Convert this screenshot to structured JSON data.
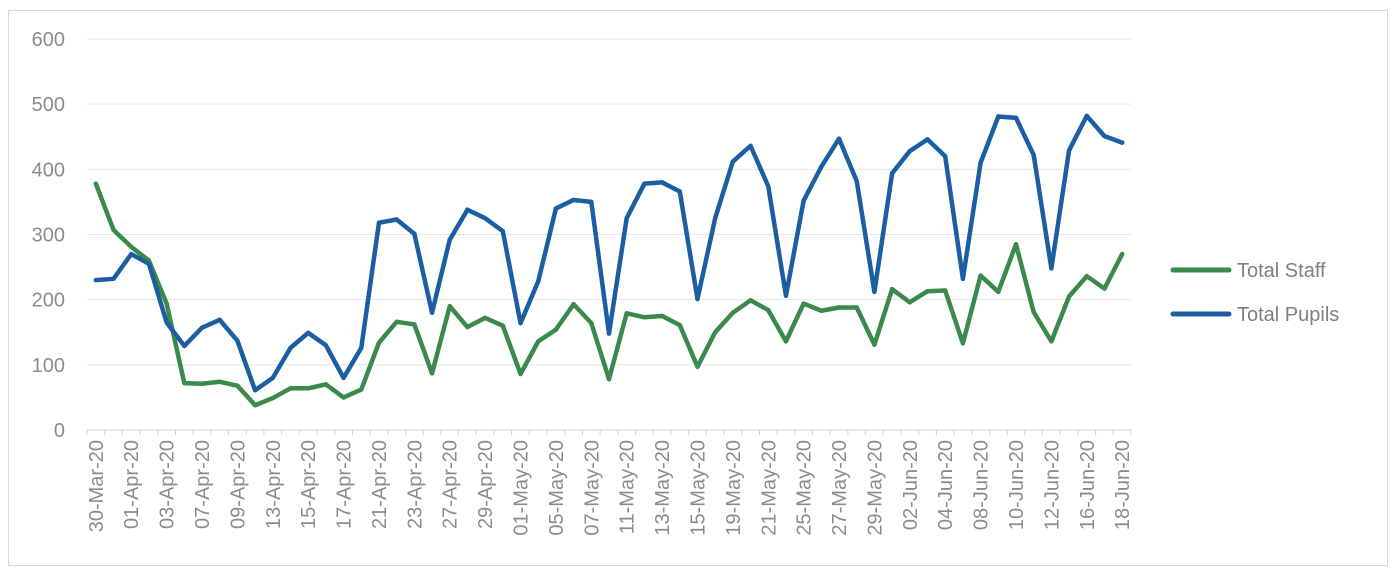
{
  "chart_data": {
    "type": "line",
    "title": "",
    "xlabel": "",
    "ylabel": "",
    "ylim": [
      0,
      600
    ],
    "y_ticks": [
      0,
      100,
      200,
      300,
      400,
      500,
      600
    ],
    "grid": "horizontal",
    "legend_position": "right",
    "x": [
      "30-Mar-20",
      "31-Mar-20",
      "01-Apr-20",
      "02-Apr-20",
      "03-Apr-20",
      "06-Apr-20",
      "07-Apr-20",
      "08-Apr-20",
      "09-Apr-20",
      "10-Apr-20",
      "13-Apr-20",
      "14-Apr-20",
      "15-Apr-20",
      "16-Apr-20",
      "17-Apr-20",
      "20-Apr-20",
      "21-Apr-20",
      "22-Apr-20",
      "23-Apr-20",
      "24-Apr-20",
      "27-Apr-20",
      "28-Apr-20",
      "29-Apr-20",
      "30-Apr-20",
      "01-May-20",
      "04-May-20",
      "05-May-20",
      "06-May-20",
      "07-May-20",
      "08-May-20",
      "11-May-20",
      "12-May-20",
      "13-May-20",
      "14-May-20",
      "15-May-20",
      "18-May-20",
      "19-May-20",
      "20-May-20",
      "21-May-20",
      "22-May-20",
      "25-May-20",
      "26-May-20",
      "27-May-20",
      "28-May-20",
      "29-May-20",
      "01-Jun-20",
      "02-Jun-20",
      "03-Jun-20",
      "04-Jun-20",
      "05-Jun-20",
      "08-Jun-20",
      "09-Jun-20",
      "10-Jun-20",
      "11-Jun-20",
      "12-Jun-20",
      "15-Jun-20",
      "16-Jun-20",
      "17-Jun-20",
      "18-Jun-20"
    ],
    "x_tick_labels": [
      "30-Mar-20",
      "01-Apr-20",
      "03-Apr-20",
      "07-Apr-20",
      "09-Apr-20",
      "13-Apr-20",
      "15-Apr-20",
      "17-Apr-20",
      "21-Apr-20",
      "23-Apr-20",
      "27-Apr-20",
      "29-Apr-20",
      "01-May-20",
      "05-May-20",
      "07-May-20",
      "11-May-20",
      "13-May-20",
      "15-May-20",
      "19-May-20",
      "21-May-20",
      "25-May-20",
      "27-May-20",
      "29-May-20",
      "02-Jun-20",
      "04-Jun-20",
      "08-Jun-20",
      "10-Jun-20",
      "12-Jun-20",
      "16-Jun-20",
      "18-Jun-20"
    ],
    "series": [
      {
        "name": "Total Staff",
        "color": "#3a8a4b",
        "values": [
          378,
          307,
          281,
          260,
          194,
          72,
          71,
          74,
          68,
          38,
          49,
          64,
          64,
          70,
          50,
          62,
          134,
          166,
          162,
          87,
          190,
          158,
          172,
          160,
          86,
          136,
          154,
          193,
          164,
          78,
          179,
          173,
          175,
          161,
          97,
          150,
          180,
          199,
          184,
          136,
          194,
          183,
          188,
          188,
          131,
          216,
          196,
          213,
          214,
          133,
          237,
          212,
          285,
          181,
          136,
          205,
          236,
          217,
          270
        ]
      },
      {
        "name": "Total Pupils",
        "color": "#1b5ea3",
        "values": [
          230,
          232,
          270,
          255,
          165,
          129,
          157,
          169,
          137,
          61,
          80,
          126,
          149,
          130,
          80,
          126,
          318,
          323,
          301,
          180,
          292,
          338,
          325,
          305,
          164,
          228,
          340,
          353,
          350,
          148,
          325,
          378,
          380,
          366,
          201,
          325,
          412,
          436,
          374,
          206,
          352,
          404,
          447,
          382,
          212,
          394,
          428,
          446,
          420,
          232,
          410,
          481,
          479,
          422,
          248,
          429,
          482,
          451,
          441
        ]
      }
    ]
  }
}
